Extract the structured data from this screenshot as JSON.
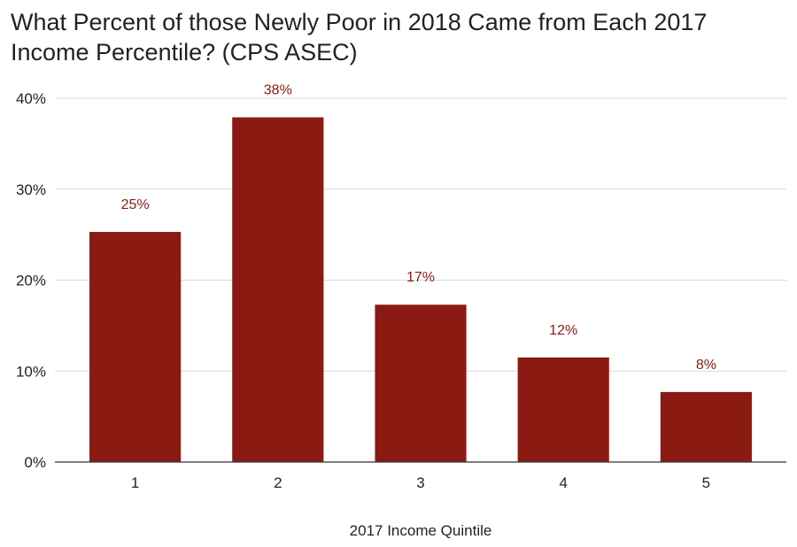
{
  "title": "What Percent of those Newly Poor in 2018 Came from Each 2017 Income Percentile? (CPS ASEC)",
  "chart_data": {
    "type": "bar",
    "title": "What Percent of those Newly Poor in 2018 Came from Each 2017 Income Percentile? (CPS ASEC)",
    "xlabel": "2017 Income Quintile",
    "ylabel": "",
    "categories": [
      "1",
      "2",
      "3",
      "4",
      "5"
    ],
    "values": [
      25.3,
      37.9,
      17.3,
      11.5,
      7.7
    ],
    "data_labels": [
      "25%",
      "38%",
      "17%",
      "12%",
      "8%"
    ],
    "ylim": [
      0,
      40
    ],
    "yticks": [
      0,
      10,
      20,
      30,
      40
    ],
    "ytick_labels": [
      "0%",
      "10%",
      "20%",
      "30%",
      "40%"
    ],
    "grid": true,
    "legend": "none",
    "colors": {
      "bar": "#8b1a12",
      "label": "#8b1a12",
      "grid": "#d9d9d9",
      "axis": "#333333"
    }
  }
}
